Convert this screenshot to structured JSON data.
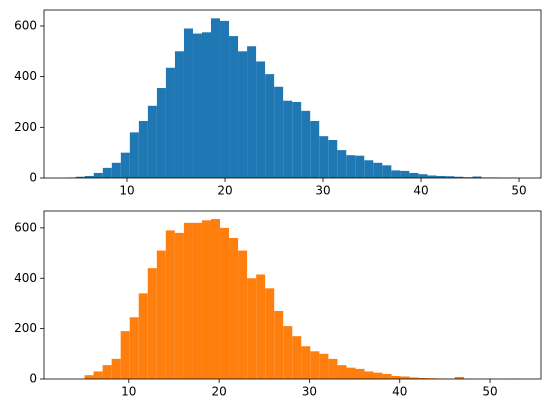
{
  "chart_data": [
    {
      "type": "histogram",
      "color": "#1f77b4",
      "bins": [
        3.85,
        4.77,
        5.69,
        6.61,
        7.53,
        8.45,
        9.37,
        10.29,
        11.21,
        12.13,
        13.05,
        13.97,
        14.89,
        15.81,
        16.73,
        17.65,
        18.57,
        19.49,
        20.41,
        21.33,
        22.25,
        23.17,
        24.09,
        25.01,
        25.93,
        26.85,
        27.77,
        28.69,
        29.61,
        30.53,
        31.45,
        32.37,
        33.29,
        34.21,
        35.13,
        36.05,
        36.97,
        37.89,
        38.81,
        39.73,
        40.65,
        41.57,
        42.49,
        43.41,
        44.33,
        45.25,
        46.17,
        47.09,
        48.01,
        48.93,
        49.85
      ],
      "values": [
        2,
        5,
        8,
        20,
        40,
        60,
        100,
        180,
        225,
        285,
        355,
        435,
        500,
        590,
        570,
        575,
        630,
        620,
        560,
        500,
        520,
        460,
        410,
        360,
        305,
        300,
        265,
        225,
        165,
        150,
        110,
        90,
        88,
        70,
        60,
        50,
        30,
        28,
        20,
        15,
        10,
        8,
        7,
        5,
        3,
        6,
        2,
        2,
        1,
        1
      ],
      "xlim": [
        1.53,
        52.24
      ],
      "ylim": [
        0,
        663
      ],
      "xticks": [
        10,
        20,
        30,
        40,
        50
      ],
      "yticks": [
        0,
        200,
        400,
        600
      ]
    },
    {
      "type": "histogram",
      "color": "#ff7f0e",
      "bins": [
        3.1,
        4.1,
        5.1,
        6.1,
        7.1,
        8.1,
        9.1,
        10.1,
        11.1,
        12.1,
        13.1,
        14.1,
        15.1,
        16.1,
        17.1,
        18.1,
        19.1,
        20.1,
        21.1,
        22.1,
        23.1,
        24.1,
        25.1,
        26.1,
        27.1,
        28.1,
        29.1,
        30.1,
        31.1,
        32.1,
        33.1,
        34.1,
        35.1,
        36.1,
        37.1,
        38.1,
        39.1,
        40.1,
        41.1,
        42.1,
        43.1,
        44.1,
        45.1,
        46.1,
        47.1,
        48.1,
        49.1,
        50.1,
        51.1,
        52.1,
        53.1
      ],
      "values": [
        0,
        0,
        15,
        30,
        55,
        80,
        190,
        245,
        340,
        440,
        510,
        590,
        580,
        620,
        620,
        630,
        635,
        600,
        560,
        510,
        400,
        415,
        360,
        270,
        210,
        170,
        130,
        110,
        100,
        80,
        55,
        45,
        40,
        30,
        25,
        20,
        12,
        10,
        6,
        4,
        3,
        2,
        1,
        8,
        1,
        0,
        0,
        0,
        0,
        1
      ],
      "xlim": [
        0.61,
        55.64
      ],
      "ylim": [
        0,
        667
      ],
      "xticks": [
        10,
        20,
        30,
        40,
        50
      ],
      "yticks": [
        0,
        200,
        400,
        600
      ]
    }
  ]
}
